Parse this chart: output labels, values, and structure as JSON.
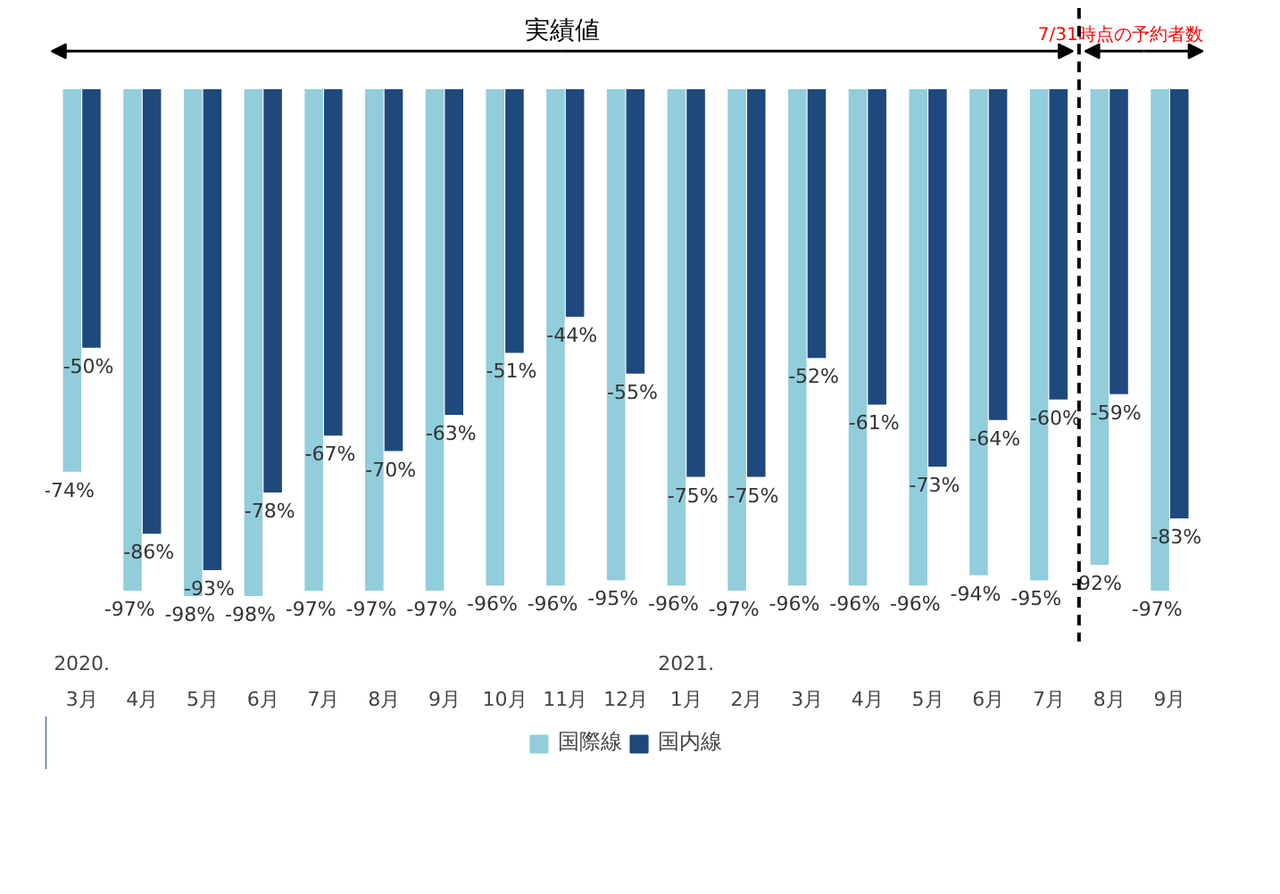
{
  "chart_data": {
    "type": "bar",
    "categories": [
      "2020.\n3月",
      "4月",
      "5月",
      "6月",
      "7月",
      "8月",
      "9月",
      "10月",
      "11月",
      "12月",
      "2021.\n1月",
      "2月",
      "3月",
      "4月",
      "5月",
      "6月",
      "7月",
      "8月",
      "9月"
    ],
    "series": [
      {
        "name": "国際線",
        "color": "#92cddc",
        "values": [
          -74,
          -97,
          -98,
          -98,
          -97,
          -97,
          -97,
          -96,
          -96,
          -95,
          -96,
          -97,
          -96,
          -96,
          -96,
          -94,
          -95,
          -92,
          -97
        ],
        "value_labels": [
          "-74%",
          "-97%",
          "-98%",
          "-98%",
          "-97%",
          "-97%",
          "-97%",
          "-96%",
          "-96%",
          "-95%",
          "-96%",
          "-97%",
          "-96%",
          "-96%",
          "-96%",
          "-94%",
          "-95%",
          "-92%",
          "-97%"
        ]
      },
      {
        "name": "国内線",
        "color": "#1f497d",
        "values": [
          -50,
          -86,
          -93,
          -78,
          -67,
          -70,
          -63,
          -51,
          -44,
          -55,
          -75,
          -75,
          -52,
          -61,
          -73,
          -64,
          -60,
          -59,
          -83
        ],
        "value_labels": [
          "-50%",
          "-86%",
          "-93%",
          "-78%",
          "-67%",
          "-70%",
          "-63%",
          "-51%",
          "-44%",
          "-55%",
          "-75%",
          "-75%",
          "-52%",
          "-61%",
          "-73%",
          "-64%",
          "-60%",
          "-59%",
          "-83%"
        ]
      }
    ],
    "legend": "bottom",
    "tick_labels": "x",
    "annotations": [
      "実績値",
      "7/31時点の予約者数"
    ]
  }
}
